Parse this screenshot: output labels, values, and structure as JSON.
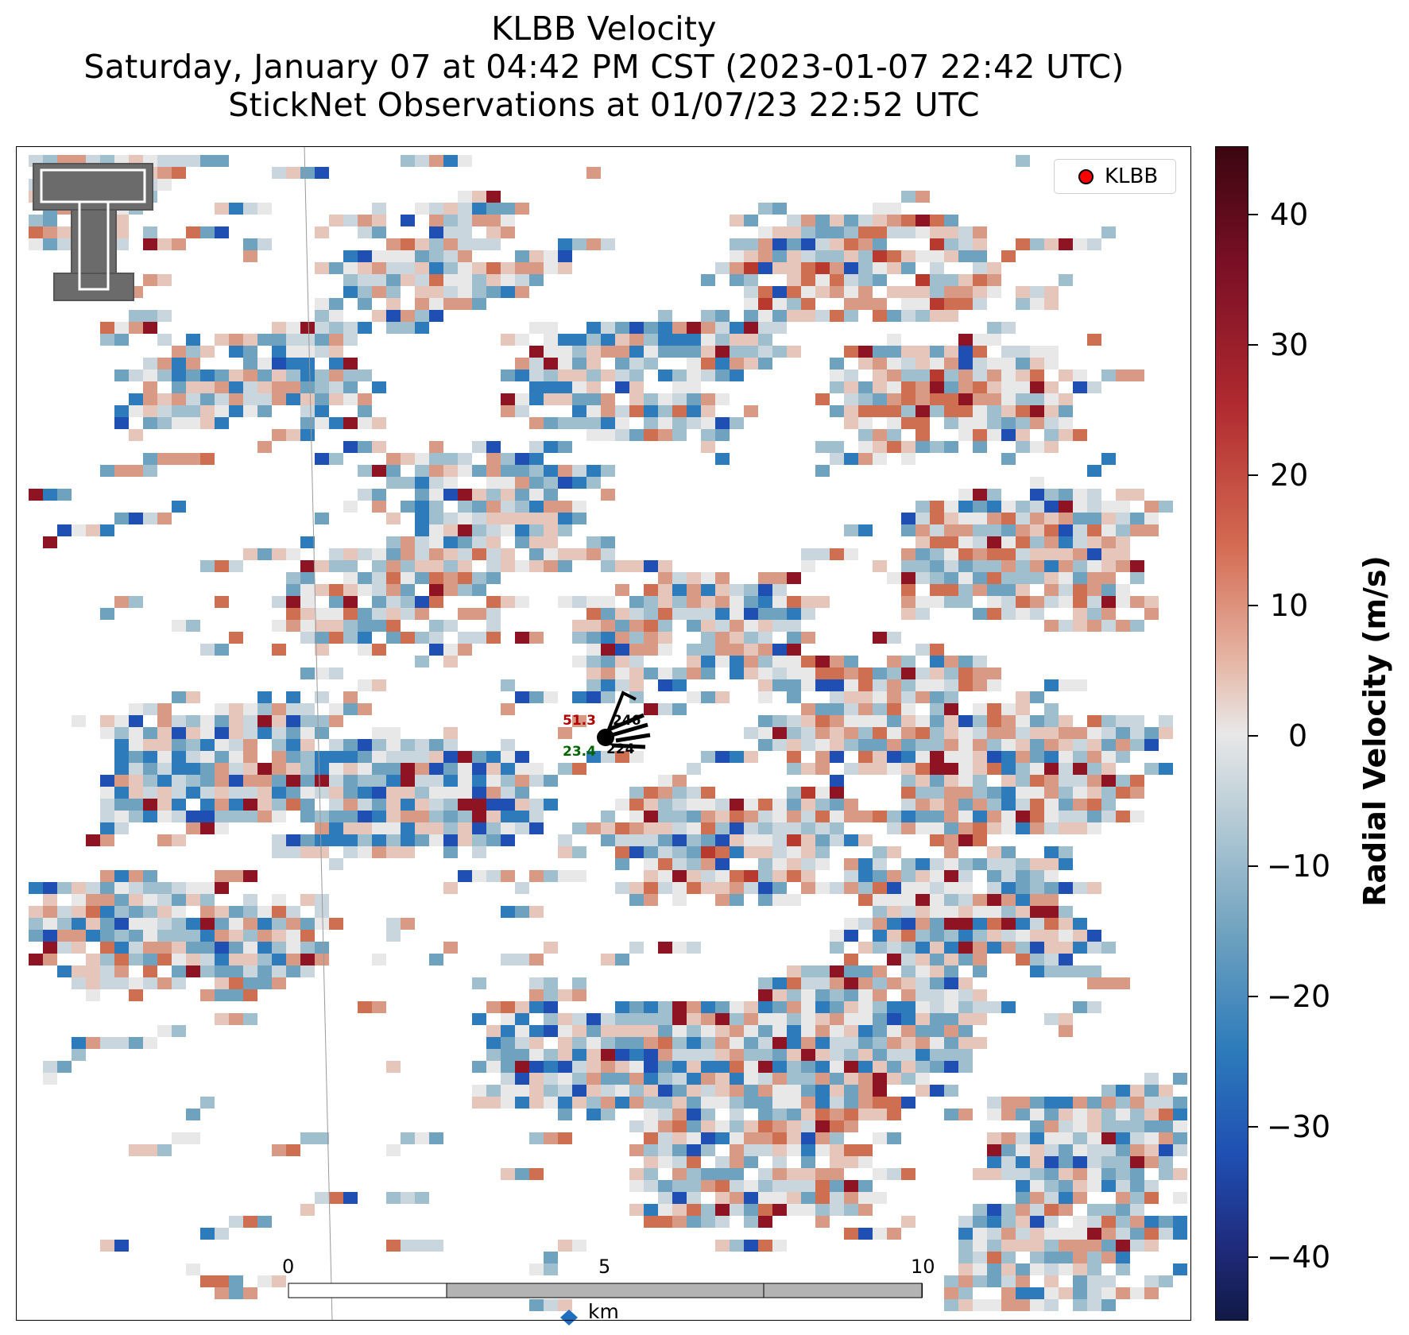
{
  "title": {
    "line1": "KLBB Velocity",
    "line2": "Saturday, January 07 at 04:42 PM CST (2023-01-07 22:42 UTC)",
    "line3": "StickNet Observations at 01/07/23 22:52 UTC"
  },
  "legend": {
    "label": "KLBB",
    "marker_color": "#ff0000"
  },
  "colorbar": {
    "label": "Radial Velocity (m/s)",
    "range": [
      -45,
      45
    ],
    "ticks": [
      "40",
      "30",
      "20",
      "10",
      "0",
      "−10",
      "−20",
      "−30",
      "−40"
    ]
  },
  "station": {
    "temperature": "51.3",
    "dewpoint": "23.4",
    "upper_code": "246",
    "lower_code": "224",
    "temperature_color": "#b00000",
    "dewpoint_color": "#006400"
  },
  "scale_bar": {
    "ticks": [
      "0",
      "5",
      "10"
    ],
    "unit": "km"
  },
  "logo": {
    "name": "Texas Tech Double T"
  },
  "colors": {
    "negative": "#2166ac",
    "positive": "#b2182b",
    "neutral": "#e8e8e8"
  }
}
